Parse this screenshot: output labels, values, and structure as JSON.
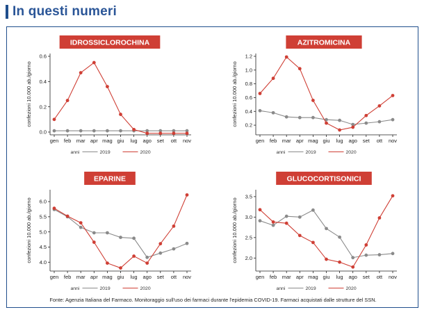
{
  "header": {
    "title": "In questi numeri"
  },
  "footer": {
    "source": "Fonte: Agenzia Italiana del Farmaco. Monitoraggio sull'uso dei farmaci durante l'epidemia COVID-19. Farmaci acquistati dalle strutture del SSN."
  },
  "colors": {
    "header_bar": "#1f4e8c",
    "header_text": "#2a5597",
    "frame": "#1f4e8c",
    "series_2019": "#8a8a8a",
    "series_2020": "#cf3f35",
    "title_box": "#cf3f35"
  },
  "chart_data": [
    {
      "type": "line",
      "title": "IDROSSICLOROCHINA",
      "ylabel": "confezioni 10.000 ab./giorno",
      "categories": [
        "gen",
        "feb",
        "mar",
        "apr",
        "mag",
        "giu",
        "lug",
        "ago",
        "set",
        "ott",
        "nov"
      ],
      "yticks": [
        "0.0",
        "0.2",
        "0.4",
        "0.6"
      ],
      "ylim": [
        0.0,
        0.6
      ],
      "legend_title": "anni",
      "series": [
        {
          "name": "2019",
          "values": [
            0.01,
            0.01,
            0.01,
            0.01,
            0.01,
            0.01,
            0.01,
            0.01,
            0.01,
            0.01,
            0.01
          ]
        },
        {
          "name": "2020",
          "values": [
            0.1,
            0.25,
            0.47,
            0.55,
            0.36,
            0.14,
            0.02,
            -0.01,
            -0.01,
            -0.01,
            -0.01
          ]
        }
      ]
    },
    {
      "type": "line",
      "title": "AZITROMICINA",
      "ylabel": "confezioni 10.000 ab./giorno",
      "categories": [
        "gen",
        "feb",
        "mar",
        "apr",
        "mag",
        "giu",
        "lug",
        "ago",
        "set",
        "ott",
        "nov"
      ],
      "yticks": [
        "0.2",
        "0.4",
        "0.6",
        "0.8",
        "1.0",
        "1.2"
      ],
      "ylim": [
        0.1,
        1.2
      ],
      "legend_title": "anni",
      "series": [
        {
          "name": "2019",
          "values": [
            0.41,
            0.38,
            0.32,
            0.31,
            0.31,
            0.28,
            0.27,
            0.21,
            0.23,
            0.25,
            0.28
          ]
        },
        {
          "name": "2020",
          "values": [
            0.66,
            0.88,
            1.19,
            1.02,
            0.56,
            0.23,
            0.13,
            0.17,
            0.34,
            0.48,
            0.63
          ]
        }
      ]
    },
    {
      "type": "line",
      "title": "EPARINE",
      "ylabel": "confezioni 10.000 ab./giorno",
      "categories": [
        "gen",
        "feb",
        "mar",
        "apr",
        "mag",
        "giu",
        "lug",
        "ago",
        "set",
        "ott",
        "nov"
      ],
      "yticks": [
        "4.0",
        "4.5",
        "5.0",
        "5.5",
        "6.0"
      ],
      "ylim": [
        3.8,
        6.3
      ],
      "legend_title": "anni",
      "series": [
        {
          "name": "2019",
          "values": [
            5.74,
            5.5,
            5.15,
            4.97,
            4.97,
            4.82,
            4.79,
            4.16,
            4.3,
            4.44,
            4.62
          ]
        },
        {
          "name": "2020",
          "values": [
            5.78,
            5.52,
            5.3,
            4.66,
            3.97,
            3.81,
            4.2,
            3.97,
            4.61,
            5.19,
            6.22
          ]
        }
      ]
    },
    {
      "type": "line",
      "title": "GLUCOCORTISONICI",
      "ylabel": "confezioni 10.000 ab./giorno",
      "categories": [
        "gen",
        "feb",
        "mar",
        "apr",
        "mag",
        "giu",
        "lug",
        "ago",
        "set",
        "ott",
        "nov"
      ],
      "yticks": [
        "2.0",
        "2.5",
        "3.0",
        "3.5"
      ],
      "ylim": [
        1.75,
        3.6
      ],
      "legend_title": "anni",
      "series": [
        {
          "name": "2019",
          "values": [
            2.91,
            2.8,
            3.02,
            3.0,
            3.17,
            2.72,
            2.51,
            2.01,
            2.07,
            2.08,
            2.11
          ]
        },
        {
          "name": "2020",
          "values": [
            3.18,
            2.88,
            2.85,
            2.55,
            2.38,
            1.97,
            1.9,
            1.78,
            2.32,
            2.98,
            3.52
          ]
        }
      ]
    }
  ]
}
